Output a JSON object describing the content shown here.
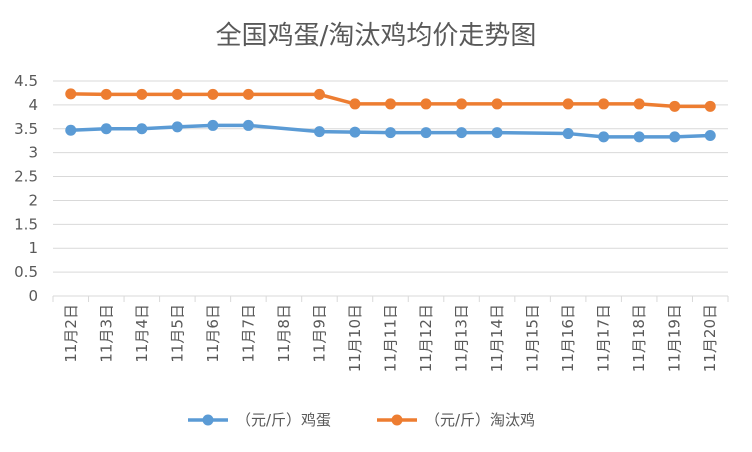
{
  "chart_data": {
    "type": "line",
    "title": "全国鸡蛋/淘汰鸡均价走势图",
    "categories": [
      "11月2日",
      "11月3日",
      "11月4日",
      "11月5日",
      "11月6日",
      "11月7日",
      "11月8日",
      "11月9日",
      "11月10日",
      "11月11日",
      "11月12日",
      "11月13日",
      "11月14日",
      "11月15日",
      "11月16日",
      "11月17日",
      "11月18日",
      "11月19日",
      "11月20日"
    ],
    "ylim": [
      0,
      4.5
    ],
    "yticks": [
      "0",
      "0.5",
      "1",
      "1.5",
      "2",
      "2.5",
      "3",
      "3.5",
      "4",
      "4.5"
    ],
    "ytick_values": [
      0,
      0.5,
      1,
      1.5,
      2,
      2.5,
      3,
      3.5,
      4,
      4.5
    ],
    "grid": true,
    "legend_position": "bottom",
    "series": [
      {
        "name": "（元/斤）鸡蛋",
        "color": "#5b9bd5",
        "values": [
          3.47,
          3.5,
          3.5,
          3.54,
          3.57,
          3.57,
          null,
          3.44,
          3.43,
          3.42,
          3.42,
          3.42,
          3.42,
          null,
          3.4,
          3.33,
          3.33,
          3.33,
          3.36
        ]
      },
      {
        "name": "（元/斤）淘汰鸡",
        "color": "#ed7d31",
        "values": [
          4.23,
          4.22,
          4.22,
          4.22,
          4.22,
          4.22,
          null,
          4.22,
          4.02,
          4.02,
          4.02,
          4.02,
          4.02,
          null,
          4.02,
          4.02,
          4.02,
          3.97,
          3.97
        ]
      }
    ]
  }
}
